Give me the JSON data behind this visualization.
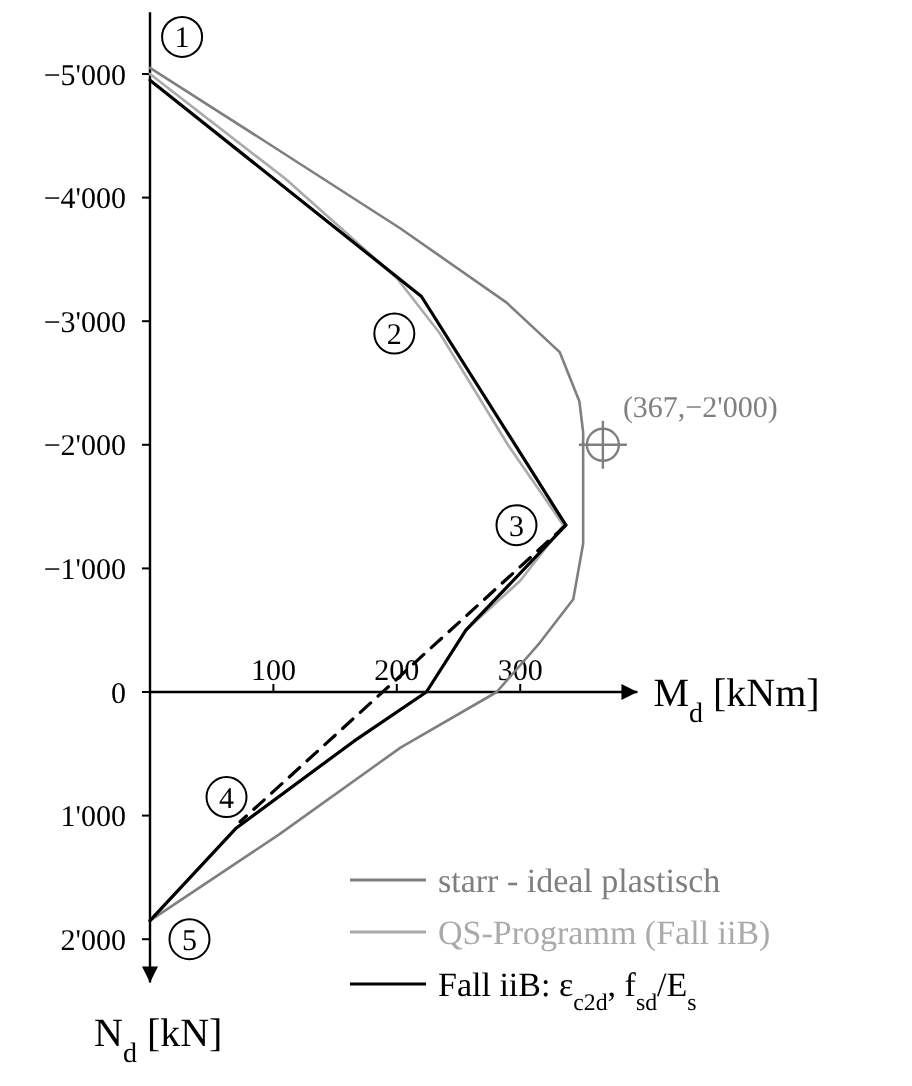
{
  "chart_data": {
    "type": "line",
    "xlabel": "M$_{d}$ [kNm]",
    "ylabel": "N$_{d}$ [kN]",
    "xlim": [
      0,
      395
    ],
    "ylim": [
      2350,
      -5500
    ],
    "xticks": [
      100,
      200,
      300
    ],
    "yticks": [
      {
        "value": -5000,
        "label": "−5'000"
      },
      {
        "value": -4000,
        "label": "−4'000"
      },
      {
        "value": -3000,
        "label": "−3'000"
      },
      {
        "value": -2000,
        "label": "−2'000"
      },
      {
        "value": -1000,
        "label": "−1'000"
      },
      0,
      {
        "value": 1000,
        "label": "1'000"
      },
      {
        "value": 2000,
        "label": "2'000"
      }
    ],
    "legend": "bottom right",
    "series": [
      {
        "name": "starr - ideal plastisch",
        "color": "#7f7f7f",
        "x": [
          0,
          94,
          203,
          289,
          332,
          348,
          351,
          351,
          343,
          316,
          281,
          203,
          105,
          0
        ],
        "values": [
          -5050,
          -4450,
          -3750,
          -3150,
          -2750,
          -2350,
          -2100,
          -1200,
          -750,
          -400,
          0,
          450,
          1150,
          1850
        ]
      },
      {
        "name": "QS-Programm (Fall iiB)",
        "color": "#aaaaaa",
        "x": [
          0,
          110,
          200,
          235,
          290,
          335,
          300,
          256,
          224,
          165,
          70,
          0
        ],
        "values": [
          -5000,
          -4150,
          -3350,
          -2900,
          -2000,
          -1350,
          -900,
          -500,
          0,
          400,
          1100,
          1850
        ]
      },
      {
        "name": "Fall iiB: ε$_{c2d}$, f$_{sd}$/E$_{s}$",
        "color": "#000000",
        "x": [
          0,
          220,
          337,
          256,
          224,
          165,
          70,
          0
        ],
        "values": [
          -4950,
          -3200,
          -1350,
          -500,
          0,
          400,
          1100,
          1850
        ]
      },
      {
        "color": "#000000",
        "line_style": "dashed",
        "x": [
          337,
          73
        ],
        "values": [
          -1350,
          1050
        ]
      },
      {
        "type": "scatter",
        "marker": "circle",
        "color": "#7f7f7f",
        "x": [
          367
        ],
        "values": [
          -2000
        ]
      }
    ],
    "annotations": [
      {
        "text": "1",
        "x": 26,
        "y": -5300
      },
      {
        "text": "2",
        "x": 198,
        "y": -2900
      },
      {
        "text": "3",
        "x": 297,
        "y": -1350
      },
      {
        "text": "4",
        "x": 62,
        "y": 850
      },
      {
        "text": "5",
        "x": 32,
        "y": 2000
      },
      {
        "text": "(367,−2'000)",
        "x": 367,
        "y": -2000
      }
    ]
  }
}
